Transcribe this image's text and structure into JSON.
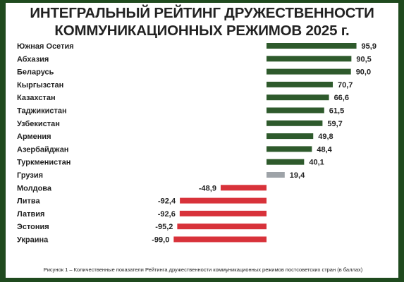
{
  "title_line1": "ИНТЕГРАЛЬНЫЙ РЕЙТИНГ ДРУЖЕСТВЕННОСТИ",
  "title_line2": "КОММУНИКАЦИОННЫХ РЕЖИМОВ 2025 г.",
  "caption": "Рисунок 1 – Количественные показатели Рейтинга дружественности коммуникационных режимов постсоветских стран (в баллах)",
  "colors": {
    "positive": "#2e5a2c",
    "neutral": "#9ea3a8",
    "negative": "#d8323a",
    "background": "#1f4a1e"
  },
  "chart_data": {
    "type": "bar",
    "orientation": "horizontal",
    "categories": [
      "Южная Осетия",
      "Абхазия",
      "Беларусь",
      "Кыргызстан",
      "Казахстан",
      "Таджикистан",
      "Узбекистан",
      "Армения",
      "Азербайджан",
      "Туркменистан",
      "Грузия",
      "Молдова",
      "Литва",
      "Латвия",
      "Эстония",
      "Украина"
    ],
    "values": [
      95.9,
      90.5,
      90.0,
      70.7,
      66.6,
      61.5,
      59.7,
      49.8,
      48.4,
      40.1,
      19.4,
      -48.9,
      -92.4,
      -92.6,
      -95.2,
      -99.0
    ],
    "value_labels": [
      "95,9",
      "90,5",
      "90,0",
      "70,7",
      "66,6",
      "61,5",
      "59,7",
      "49,8",
      "48,4",
      "40,1",
      "19,4",
      "-48,9",
      "-92,4",
      "-92,6",
      "-95,2",
      "-99,0"
    ],
    "bar_colors": [
      "positive",
      "positive",
      "positive",
      "positive",
      "positive",
      "positive",
      "positive",
      "positive",
      "positive",
      "positive",
      "neutral",
      "negative",
      "negative",
      "negative",
      "negative",
      "negative"
    ],
    "xlim": [
      -100,
      100
    ],
    "grid": false,
    "legend": "none"
  }
}
